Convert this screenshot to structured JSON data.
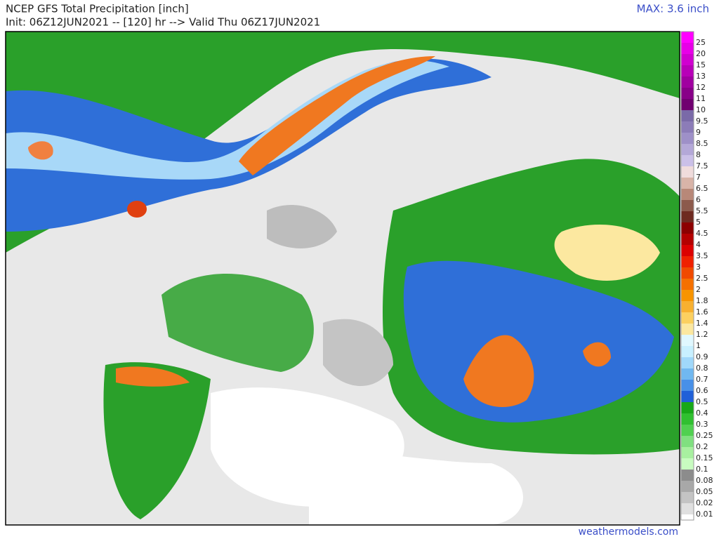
{
  "header": {
    "title": "NCEP GFS Total Precipitation [inch]",
    "subtitle": "Init: 06Z12JUN2021 -- [120] hr --> Valid Thu 06Z17JUN2021",
    "max_label": "MAX: 3.6 inch"
  },
  "colorbar": {
    "levels": [
      {
        "label": "25",
        "color": "#ff00ff"
      },
      {
        "label": "20",
        "color": "#e800e8"
      },
      {
        "label": "15",
        "color": "#d000d0"
      },
      {
        "label": "13",
        "color": "#b800b8"
      },
      {
        "label": "12",
        "color": "#a000a0"
      },
      {
        "label": "11",
        "color": "#880088"
      },
      {
        "label": "10",
        "color": "#700070"
      },
      {
        "label": "9.5",
        "color": "#7a6aa8"
      },
      {
        "label": "9",
        "color": "#8c7cb8"
      },
      {
        "label": "8.5",
        "color": "#9e90c8"
      },
      {
        "label": "8",
        "color": "#b4a8d8"
      },
      {
        "label": "7.5",
        "color": "#cbc0e8"
      },
      {
        "label": "7",
        "color": "#f0dcdc"
      },
      {
        "label": "6.5",
        "color": "#d8b4a8"
      },
      {
        "label": "6",
        "color": "#b88878"
      },
      {
        "label": "5.5",
        "color": "#8c5a4c"
      },
      {
        "label": "5",
        "color": "#6e2a20"
      },
      {
        "label": "4.5",
        "color": "#8c0000"
      },
      {
        "label": "4",
        "color": "#b40000"
      },
      {
        "label": "3.5",
        "color": "#dc0000"
      },
      {
        "label": "3",
        "color": "#f02000"
      },
      {
        "label": "2.5",
        "color": "#f04a00"
      },
      {
        "label": "2",
        "color": "#f57000"
      },
      {
        "label": "1.8",
        "color": "#f89400"
      },
      {
        "label": "1.6",
        "color": "#f8b030"
      },
      {
        "label": "1.4",
        "color": "#fcd060"
      },
      {
        "label": "1.2",
        "color": "#fce8a0"
      },
      {
        "label": "1",
        "color": "#e0f8ff"
      },
      {
        "label": "0.9",
        "color": "#c8f0ff"
      },
      {
        "label": "0.8",
        "color": "#a0d8fa"
      },
      {
        "label": "0.7",
        "color": "#70b8f0"
      },
      {
        "label": "0.6",
        "color": "#4890e8"
      },
      {
        "label": "0.5",
        "color": "#2060d8"
      },
      {
        "label": "0.4",
        "color": "#18a818"
      },
      {
        "label": "0.3",
        "color": "#30c030"
      },
      {
        "label": "0.25",
        "color": "#50d050"
      },
      {
        "label": "0.2",
        "color": "#80e080"
      },
      {
        "label": "0.15",
        "color": "#a8f0a0"
      },
      {
        "label": "0.1",
        "color": "#c8fcc0"
      },
      {
        "label": "0.08",
        "color": "#8c8c8c"
      },
      {
        "label": "0.05",
        "color": "#a8a8a8"
      },
      {
        "label": "0.02",
        "color": "#c4c4c4"
      },
      {
        "label": "0.01",
        "color": "#e0e0e0"
      }
    ]
  },
  "footer": {
    "source": "weathermodels.com"
  }
}
